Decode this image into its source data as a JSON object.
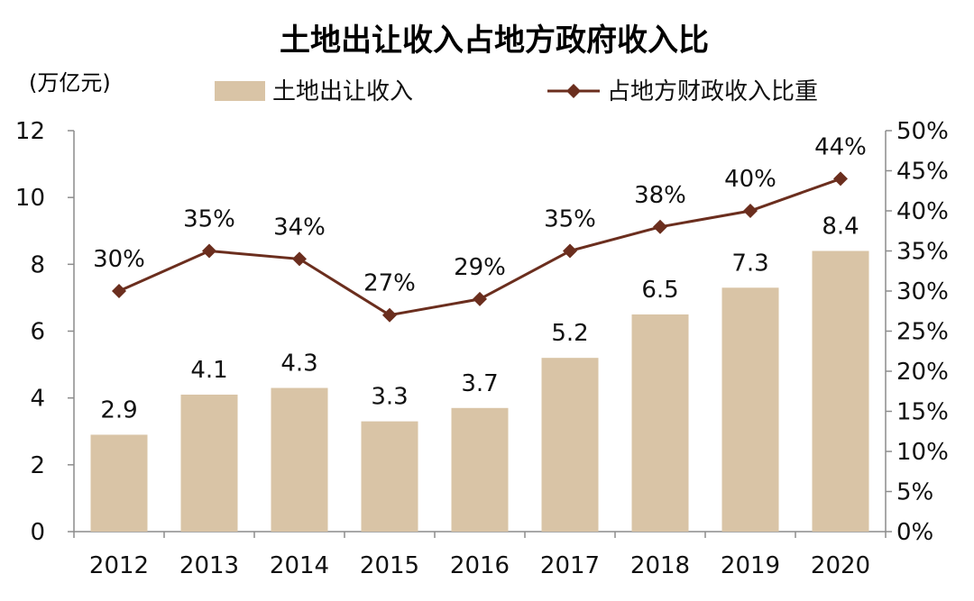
{
  "chart_data": {
    "type": "bar",
    "title": "土地出让收入占地方政府收入比",
    "ylabel": "(万亿元)",
    "categories": [
      "2012",
      "2013",
      "2014",
      "2015",
      "2016",
      "2017",
      "2018",
      "2019",
      "2020"
    ],
    "series": [
      {
        "name": "土地出让收入",
        "type": "bar",
        "axis": "left",
        "color": "#D9C4A6",
        "values": [
          2.9,
          4.1,
          4.3,
          3.3,
          3.7,
          5.2,
          6.5,
          7.3,
          8.4
        ],
        "labels": [
          "2.9",
          "4.1",
          "4.3",
          "3.3",
          "3.7",
          "5.2",
          "6.5",
          "7.3",
          "8.4"
        ]
      },
      {
        "name": "占地方财政收入比重",
        "type": "line",
        "axis": "right",
        "color": "#6B2E1E",
        "marker": "diamond",
        "values": [
          30,
          35,
          34,
          27,
          29,
          35,
          38,
          40,
          44
        ],
        "labels": [
          "30%",
          "35%",
          "34%",
          "27%",
          "29%",
          "35%",
          "38%",
          "40%",
          "44%"
        ]
      }
    ],
    "ylim": [
      0,
      12
    ],
    "yticks": [
      "0",
      "2",
      "4",
      "6",
      "8",
      "10",
      "12"
    ],
    "y2lim": [
      0,
      50
    ],
    "y2ticks": [
      "0%",
      "5%",
      "10%",
      "15%",
      "20%",
      "25%",
      "30%",
      "35%",
      "40%",
      "45%",
      "50%"
    ],
    "grid": false,
    "legend": "top"
  }
}
